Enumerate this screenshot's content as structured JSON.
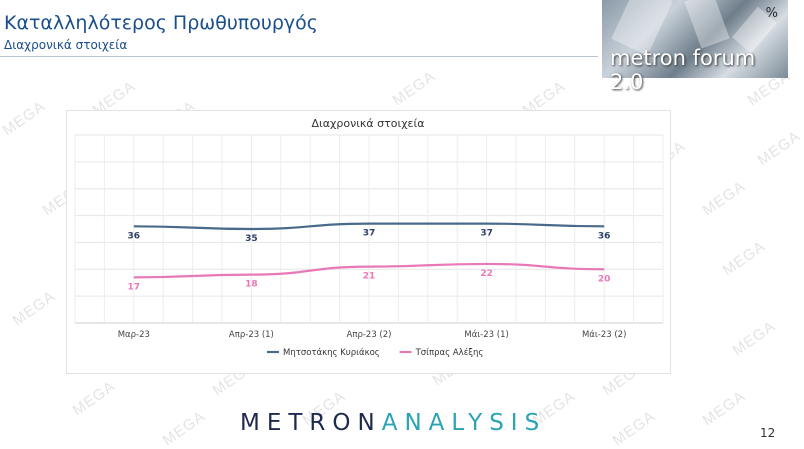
{
  "header": {
    "title": "Καταλληλότερος Πρωθυπουργός",
    "subtitle": "Διαχρονικά στοιχεία"
  },
  "logo": {
    "percent_symbol": "%",
    "text": "metron forum 2.0"
  },
  "watermark_text": "MEGA",
  "footer": {
    "brand_part1": "METRON",
    "brand_part2": "ANALYSIS",
    "page_number": "12"
  },
  "colors": {
    "header_text": "#1a4f8c",
    "series_mitsotakis": "#4a6a8c",
    "series_tsipras": "#e879b8",
    "brand_dark": "#1e2a4d",
    "brand_accent": "#2aa3b5"
  },
  "chart_data": {
    "type": "line",
    "title": "Διαχρονικά στοιχεία",
    "categories": [
      "Μαρ-23",
      "Απρ-23 (1)",
      "Απρ-23 (2)",
      "Μάι-23 (1)",
      "Μάι-23 (2)"
    ],
    "series": [
      {
        "name": "Μητσοτάκης Κυριάκος",
        "values": [
          36,
          35,
          37,
          37,
          36
        ],
        "color": "#4a6a8c"
      },
      {
        "name": "Τσίπρας Αλέξης",
        "values": [
          17,
          18,
          21,
          22,
          20
        ],
        "color": "#e879b8"
      }
    ],
    "ylim": [
      0,
      70
    ],
    "grid": true,
    "legend": "bottom",
    "xlabel": "",
    "ylabel": ""
  }
}
